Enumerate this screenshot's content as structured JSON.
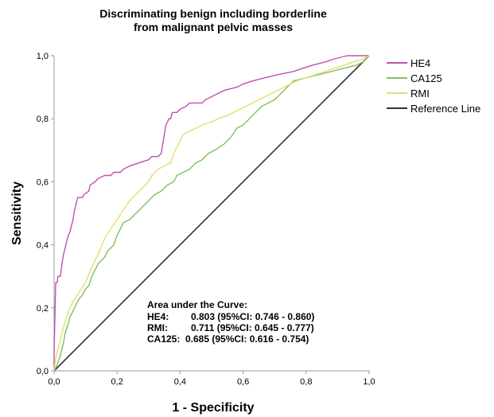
{
  "chart_data": {
    "type": "line",
    "title_lines": [
      "Discriminating benign including borderline",
      "from malignant pelvic masses"
    ],
    "xlabel": "1 - Specificity",
    "ylabel": "Sensitivity",
    "xlim": [
      0,
      1
    ],
    "ylim": [
      0,
      1
    ],
    "xticks": [
      "0,0",
      "0,2",
      "0,4",
      "0,6",
      "0,8",
      "1,0"
    ],
    "yticks": [
      "0,0",
      "0,2",
      "0,4",
      "0,6",
      "0,8",
      "1,0"
    ],
    "grid": false,
    "legend_position": "right",
    "series": [
      {
        "name": "HE4",
        "color": "#c050b0",
        "points": [
          [
            0,
            0
          ],
          [
            0,
            0.06
          ],
          [
            0.005,
            0.28
          ],
          [
            0.01,
            0.28
          ],
          [
            0.012,
            0.3
          ],
          [
            0.02,
            0.3
          ],
          [
            0.025,
            0.34
          ],
          [
            0.03,
            0.37
          ],
          [
            0.035,
            0.39
          ],
          [
            0.04,
            0.41
          ],
          [
            0.045,
            0.43
          ],
          [
            0.05,
            0.44
          ],
          [
            0.055,
            0.46
          ],
          [
            0.06,
            0.48
          ],
          [
            0.065,
            0.51
          ],
          [
            0.07,
            0.53
          ],
          [
            0.075,
            0.55
          ],
          [
            0.09,
            0.55
          ],
          [
            0.095,
            0.56
          ],
          [
            0.11,
            0.57
          ],
          [
            0.115,
            0.59
          ],
          [
            0.13,
            0.6
          ],
          [
            0.14,
            0.61
          ],
          [
            0.16,
            0.62
          ],
          [
            0.18,
            0.62
          ],
          [
            0.19,
            0.63
          ],
          [
            0.21,
            0.63
          ],
          [
            0.22,
            0.64
          ],
          [
            0.24,
            0.65
          ],
          [
            0.27,
            0.66
          ],
          [
            0.3,
            0.67
          ],
          [
            0.31,
            0.68
          ],
          [
            0.33,
            0.68
          ],
          [
            0.34,
            0.69
          ],
          [
            0.345,
            0.72
          ],
          [
            0.35,
            0.75
          ],
          [
            0.355,
            0.78
          ],
          [
            0.36,
            0.79
          ],
          [
            0.365,
            0.8
          ],
          [
            0.37,
            0.8
          ],
          [
            0.375,
            0.82
          ],
          [
            0.39,
            0.82
          ],
          [
            0.4,
            0.83
          ],
          [
            0.42,
            0.84
          ],
          [
            0.43,
            0.85
          ],
          [
            0.47,
            0.85
          ],
          [
            0.48,
            0.86
          ],
          [
            0.5,
            0.87
          ],
          [
            0.52,
            0.88
          ],
          [
            0.54,
            0.89
          ],
          [
            0.58,
            0.9
          ],
          [
            0.6,
            0.91
          ],
          [
            0.63,
            0.92
          ],
          [
            0.67,
            0.93
          ],
          [
            0.71,
            0.94
          ],
          [
            0.76,
            0.95
          ],
          [
            0.79,
            0.96
          ],
          [
            0.82,
            0.97
          ],
          [
            0.86,
            0.98
          ],
          [
            0.89,
            0.99
          ],
          [
            0.93,
            1.0
          ],
          [
            1.0,
            1.0
          ]
        ]
      },
      {
        "name": "CA125",
        "color": "#80c060",
        "points": [
          [
            0,
            0
          ],
          [
            0.01,
            0.02
          ],
          [
            0.02,
            0.05
          ],
          [
            0.03,
            0.09
          ],
          [
            0.035,
            0.12
          ],
          [
            0.045,
            0.15
          ],
          [
            0.05,
            0.17
          ],
          [
            0.06,
            0.19
          ],
          [
            0.07,
            0.21
          ],
          [
            0.08,
            0.23
          ],
          [
            0.09,
            0.24
          ],
          [
            0.1,
            0.26
          ],
          [
            0.11,
            0.27
          ],
          [
            0.12,
            0.3
          ],
          [
            0.13,
            0.32
          ],
          [
            0.14,
            0.34
          ],
          [
            0.16,
            0.36
          ],
          [
            0.17,
            0.38
          ],
          [
            0.19,
            0.4
          ],
          [
            0.2,
            0.43
          ],
          [
            0.21,
            0.45
          ],
          [
            0.22,
            0.47
          ],
          [
            0.24,
            0.48
          ],
          [
            0.26,
            0.5
          ],
          [
            0.28,
            0.52
          ],
          [
            0.3,
            0.54
          ],
          [
            0.32,
            0.56
          ],
          [
            0.34,
            0.57
          ],
          [
            0.36,
            0.59
          ],
          [
            0.38,
            0.6
          ],
          [
            0.39,
            0.62
          ],
          [
            0.41,
            0.63
          ],
          [
            0.43,
            0.64
          ],
          [
            0.45,
            0.66
          ],
          [
            0.47,
            0.67
          ],
          [
            0.49,
            0.69
          ],
          [
            0.51,
            0.7
          ],
          [
            0.54,
            0.72
          ],
          [
            0.56,
            0.74
          ],
          [
            0.58,
            0.77
          ],
          [
            0.6,
            0.78
          ],
          [
            0.62,
            0.8
          ],
          [
            0.64,
            0.82
          ],
          [
            0.66,
            0.84
          ],
          [
            0.68,
            0.85
          ],
          [
            0.7,
            0.86
          ],
          [
            0.72,
            0.88
          ],
          [
            0.74,
            0.9
          ],
          [
            0.76,
            0.92
          ],
          [
            0.8,
            0.93
          ],
          [
            0.84,
            0.94
          ],
          [
            0.88,
            0.95
          ],
          [
            0.92,
            0.96
          ],
          [
            0.96,
            0.97
          ],
          [
            0.98,
            0.98
          ],
          [
            1.0,
            1.0
          ]
        ]
      },
      {
        "name": "RMI",
        "color": "#e0e070",
        "points": [
          [
            0,
            0
          ],
          [
            0.005,
            0.04
          ],
          [
            0.01,
            0.06
          ],
          [
            0.02,
            0.1
          ],
          [
            0.03,
            0.14
          ],
          [
            0.04,
            0.17
          ],
          [
            0.05,
            0.2
          ],
          [
            0.06,
            0.22
          ],
          [
            0.08,
            0.25
          ],
          [
            0.1,
            0.28
          ],
          [
            0.12,
            0.33
          ],
          [
            0.14,
            0.37
          ],
          [
            0.16,
            0.42
          ],
          [
            0.18,
            0.45
          ],
          [
            0.2,
            0.48
          ],
          [
            0.22,
            0.51
          ],
          [
            0.24,
            0.54
          ],
          [
            0.26,
            0.56
          ],
          [
            0.28,
            0.58
          ],
          [
            0.3,
            0.6
          ],
          [
            0.31,
            0.62
          ],
          [
            0.33,
            0.64
          ],
          [
            0.35,
            0.65
          ],
          [
            0.37,
            0.66
          ],
          [
            0.38,
            0.69
          ],
          [
            0.39,
            0.71
          ],
          [
            0.4,
            0.73
          ],
          [
            0.41,
            0.75
          ],
          [
            0.43,
            0.76
          ],
          [
            0.45,
            0.77
          ],
          [
            0.47,
            0.78
          ],
          [
            0.5,
            0.79
          ],
          [
            0.52,
            0.8
          ],
          [
            0.55,
            0.81
          ],
          [
            0.57,
            0.82
          ],
          [
            0.59,
            0.83
          ],
          [
            0.61,
            0.84
          ],
          [
            0.63,
            0.85
          ],
          [
            0.65,
            0.86
          ],
          [
            0.67,
            0.87
          ],
          [
            0.69,
            0.88
          ],
          [
            0.71,
            0.89
          ],
          [
            0.73,
            0.9
          ],
          [
            0.75,
            0.91
          ],
          [
            0.77,
            0.92
          ],
          [
            0.8,
            0.93
          ],
          [
            0.83,
            0.94
          ],
          [
            0.86,
            0.95
          ],
          [
            0.89,
            0.96
          ],
          [
            0.92,
            0.97
          ],
          [
            0.95,
            0.98
          ],
          [
            0.98,
            0.99
          ],
          [
            1.0,
            1.0
          ]
        ]
      },
      {
        "name": "Reference Line",
        "color": "#333333",
        "points": [
          [
            0,
            0
          ],
          [
            1,
            1
          ]
        ]
      }
    ],
    "annotation": {
      "heading": "Area under the Curve:",
      "rows": [
        {
          "label": "HE4:",
          "value": "0.803 (95%CI: 0.746 - 0.860)"
        },
        {
          "label": "RMI:",
          "value": "0.711 (95%CI: 0.645 - 0.777)"
        },
        {
          "label": "CA125:",
          "value": "0.685 (95%CI: 0.616 - 0.754)"
        }
      ]
    }
  }
}
